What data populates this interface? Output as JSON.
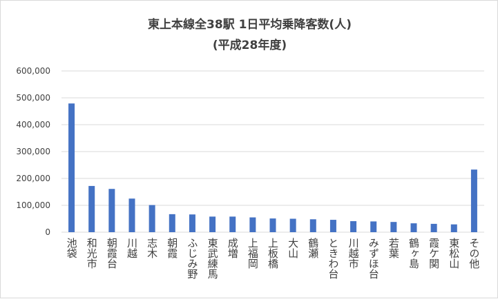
{
  "chart_data": {
    "type": "bar",
    "title_lines": [
      "東上本線全38駅 1日平均乗降客数(人)",
      "(平成28年度)"
    ],
    "xlabel": "",
    "ylabel": "",
    "ylim": [
      0,
      600000
    ],
    "yticks": [
      0,
      100000,
      200000,
      300000,
      400000,
      500000,
      600000
    ],
    "ytick_labels": [
      "0",
      "100,000",
      "200,000",
      "300,000",
      "400,000",
      "500,000",
      "600,000"
    ],
    "grid": true,
    "legend": "none",
    "bar_color": "#4472c4",
    "categories": [
      "池袋",
      "和光市",
      "朝霞台",
      "川越",
      "志木",
      "朝霞",
      "ふじみ野",
      "東武練馬",
      "成増",
      "上福岡",
      "上板橋",
      "大山",
      "鶴瀬",
      "ときわ台",
      "川越市",
      "みずほ台",
      "若葉",
      "鶴ヶ島",
      "霞ケ関",
      "東松山",
      "その他"
    ],
    "values": [
      479000,
      172000,
      161000,
      125000,
      101000,
      67000,
      66000,
      58000,
      58000,
      55000,
      51000,
      50000,
      48000,
      46000,
      41000,
      40000,
      38000,
      33000,
      31000,
      29000,
      233000
    ]
  }
}
